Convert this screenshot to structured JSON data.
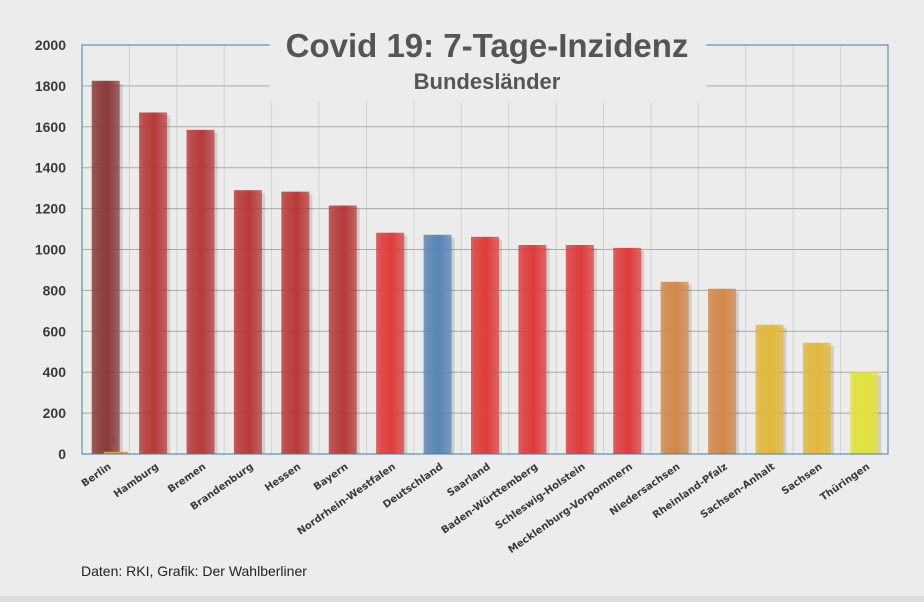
{
  "chart_data": {
    "type": "bar",
    "title": "Covid 19: 7-Tage-Inzidenz",
    "subtitle": "Bundesländer",
    "ylim": [
      0,
      2000
    ],
    "yticks": [
      0,
      200,
      400,
      600,
      800,
      1000,
      1200,
      1400,
      1600,
      1800,
      2000
    ],
    "grid": true,
    "categories": [
      "Berlin",
      "Hamburg",
      "Bremen",
      "Brandenburg",
      "Hessen",
      "Bayern",
      "Nordrhein-Westfalen",
      "Deutschland",
      "Saarland",
      "Baden-Württemberg",
      "Schleswig-Holstein",
      "Mecklenburg-Vorpommern",
      "Niedersachsen",
      "Rheinland-Pfalz",
      "Sachsen-Anhalt",
      "Sachsen",
      "Thüringen"
    ],
    "values": [
      1825,
      1670,
      1585,
      1290,
      1283,
      1215,
      1082,
      1072,
      1062,
      1022,
      1022,
      1008,
      842,
      808,
      632,
      544,
      400
    ],
    "colors": [
      "#8a3a3a",
      "#b83a3a",
      "#b83a3a",
      "#b83a3a",
      "#b83a3a",
      "#b83a3a",
      "#e03c3c",
      "#5a85b5",
      "#e03c3c",
      "#e03c3c",
      "#e03c3c",
      "#e03c3c",
      "#d2884a",
      "#d2884a",
      "#e3b83c",
      "#e3b83c",
      "#e3e23a"
    ],
    "overlay_value": 11,
    "overlay_label": "1"
  },
  "footer": {
    "source": "Daten: RKI, Grafik: Der Wahlberliner"
  }
}
